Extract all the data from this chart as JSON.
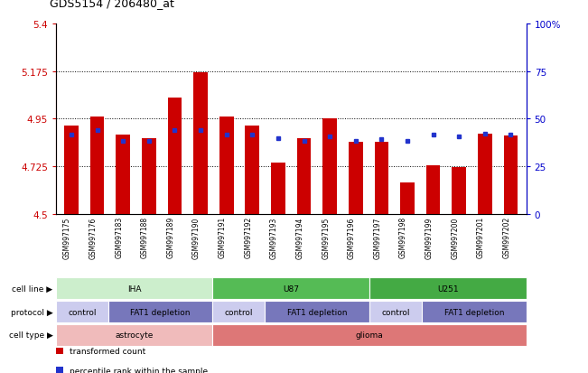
{
  "title": "GDS5154 / 206480_at",
  "samples": [
    "GSM997175",
    "GSM997176",
    "GSM997183",
    "GSM997188",
    "GSM997189",
    "GSM997190",
    "GSM997191",
    "GSM997192",
    "GSM997193",
    "GSM997194",
    "GSM997195",
    "GSM997196",
    "GSM997197",
    "GSM997198",
    "GSM997199",
    "GSM997200",
    "GSM997201",
    "GSM997202"
  ],
  "red_values": [
    4.92,
    4.96,
    4.875,
    4.86,
    5.05,
    5.17,
    4.96,
    4.92,
    4.745,
    4.86,
    4.95,
    4.84,
    4.84,
    4.65,
    4.73,
    4.72,
    4.88,
    4.87
  ],
  "blue_values": [
    4.875,
    4.895,
    4.845,
    4.845,
    4.895,
    4.895,
    4.875,
    4.875,
    4.86,
    4.845,
    4.865,
    4.845,
    4.855,
    4.845,
    4.875,
    4.865,
    4.88,
    4.875
  ],
  "ymin": 4.5,
  "ymax": 5.4,
  "yticks_left": [
    4.5,
    4.725,
    4.95,
    5.175,
    5.4
  ],
  "yticks_right": [
    0,
    25,
    50,
    75,
    100
  ],
  "hlines": [
    5.175,
    4.95,
    4.725
  ],
  "bar_color": "#cc0000",
  "blue_color": "#2233cc",
  "left_tick_color": "#cc0000",
  "right_tick_color": "#0000cc",
  "bg_xtick_color": "#cccccc",
  "cell_line_groups": [
    {
      "label": "IHA",
      "start": 0,
      "end": 6,
      "color": "#cceecc"
    },
    {
      "label": "U87",
      "start": 6,
      "end": 12,
      "color": "#55bb55"
    },
    {
      "label": "U251",
      "start": 12,
      "end": 18,
      "color": "#44aa44"
    }
  ],
  "protocol_groups": [
    {
      "label": "control",
      "start": 0,
      "end": 2,
      "color": "#ccccee"
    },
    {
      "label": "FAT1 depletion",
      "start": 2,
      "end": 6,
      "color": "#7777bb"
    },
    {
      "label": "control",
      "start": 6,
      "end": 8,
      "color": "#ccccee"
    },
    {
      "label": "FAT1 depletion",
      "start": 8,
      "end": 12,
      "color": "#7777bb"
    },
    {
      "label": "control",
      "start": 12,
      "end": 14,
      "color": "#ccccee"
    },
    {
      "label": "FAT1 depletion",
      "start": 14,
      "end": 18,
      "color": "#7777bb"
    }
  ],
  "cell_type_groups": [
    {
      "label": "astrocyte",
      "start": 0,
      "end": 6,
      "color": "#f0bbbb"
    },
    {
      "label": "glioma",
      "start": 6,
      "end": 18,
      "color": "#dd7777"
    }
  ],
  "legend_items": [
    {
      "color": "#cc0000",
      "label": "transformed count"
    },
    {
      "color": "#2233cc",
      "label": "percentile rank within the sample"
    }
  ]
}
